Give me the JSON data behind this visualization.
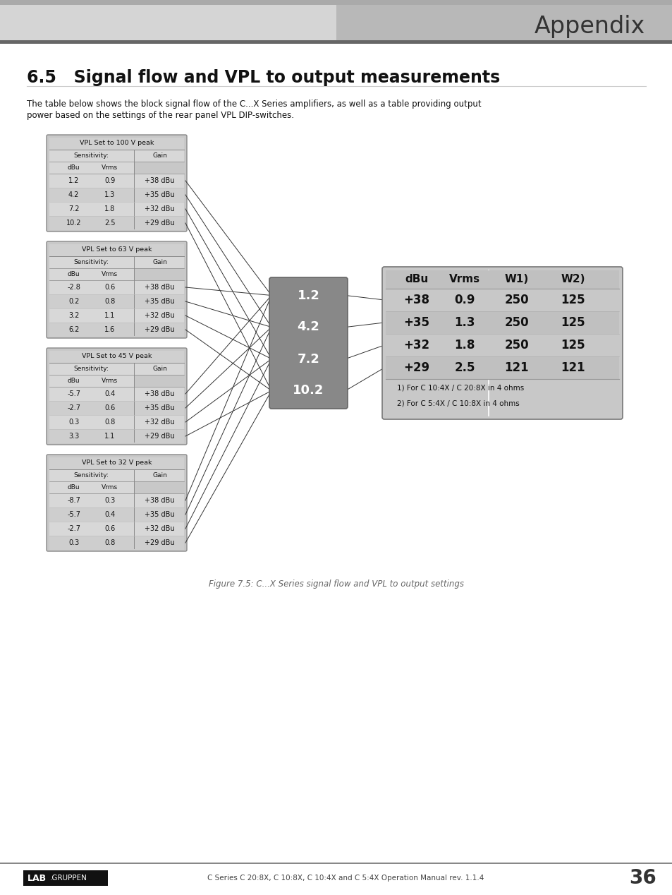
{
  "title": "6.5   Signal flow and VPL to output measurements",
  "subtitle_line1": "The table below shows the block signal flow of the C...X Series amplifiers, as well as a table providing output",
  "subtitle_line2": "power based on the settings of the rear panel VPL DIP-switches.",
  "appendix_text": "Appendix",
  "header_text": "C Series C 20:8X, C 10:8X, C 10:4X and C 5:4X Operation Manual rev. 1.1.4",
  "page_num": "36",
  "figure_caption": "Figure 7.5: C...X Series signal flow and VPL to output settings",
  "vpl_tables": [
    {
      "title": "VPL Set to 100 V peak",
      "data_rows": [
        [
          "1.2",
          "0.9",
          "+38 dBu"
        ],
        [
          "4.2",
          "1.3",
          "+35 dBu"
        ],
        [
          "7.2",
          "1.8",
          "+32 dBu"
        ],
        [
          "10.2",
          "2.5",
          "+29 dBu"
        ]
      ]
    },
    {
      "title": "VPL Set to 63 V peak",
      "data_rows": [
        [
          "-2.8",
          "0.6",
          "+38 dBu"
        ],
        [
          "0.2",
          "0.8",
          "+35 dBu"
        ],
        [
          "3.2",
          "1.1",
          "+32 dBu"
        ],
        [
          "6.2",
          "1.6",
          "+29 dBu"
        ]
      ]
    },
    {
      "title": "VPL Set to 45 V peak",
      "data_rows": [
        [
          "-5.7",
          "0.4",
          "+38 dBu"
        ],
        [
          "-2.7",
          "0.6",
          "+35 dBu"
        ],
        [
          "0.3",
          "0.8",
          "+32 dBu"
        ],
        [
          "3.3",
          "1.1",
          "+29 dBu"
        ]
      ]
    },
    {
      "title": "VPL Set to 32 V peak",
      "data_rows": [
        [
          "-8.7",
          "0.3",
          "+38 dBu"
        ],
        [
          "-5.7",
          "0.4",
          "+35 dBu"
        ],
        [
          "-2.7",
          "0.6",
          "+32 dBu"
        ],
        [
          "0.3",
          "0.8",
          "+29 dBu"
        ]
      ]
    }
  ],
  "center_box": {
    "values": [
      "1.2",
      "4.2",
      "7.2",
      "10.2"
    ],
    "bg_color": "#888888",
    "text_color": "#ffffff"
  },
  "output_table": {
    "headers": [
      "dBu",
      "Vrms",
      "W1)",
      "W2)"
    ],
    "rows": [
      [
        "+38",
        "0.9",
        "250",
        "125"
      ],
      [
        "+35",
        "1.3",
        "250",
        "125"
      ],
      [
        "+32",
        "1.8",
        "250",
        "125"
      ],
      [
        "+29",
        "2.5",
        "121",
        "121"
      ]
    ],
    "notes": [
      "1) For C 10:4X / C 20:8X in 4 ohms",
      "2) For C 5:4X / C 10:8X in 4 ohms"
    ]
  },
  "bg_color": "#ffffff",
  "header_bar_left_color": "#d8d8d8",
  "header_bar_right_color": "#b5b5b5",
  "header_stripe_color": "#888888",
  "header_bottom_color": "#555555"
}
